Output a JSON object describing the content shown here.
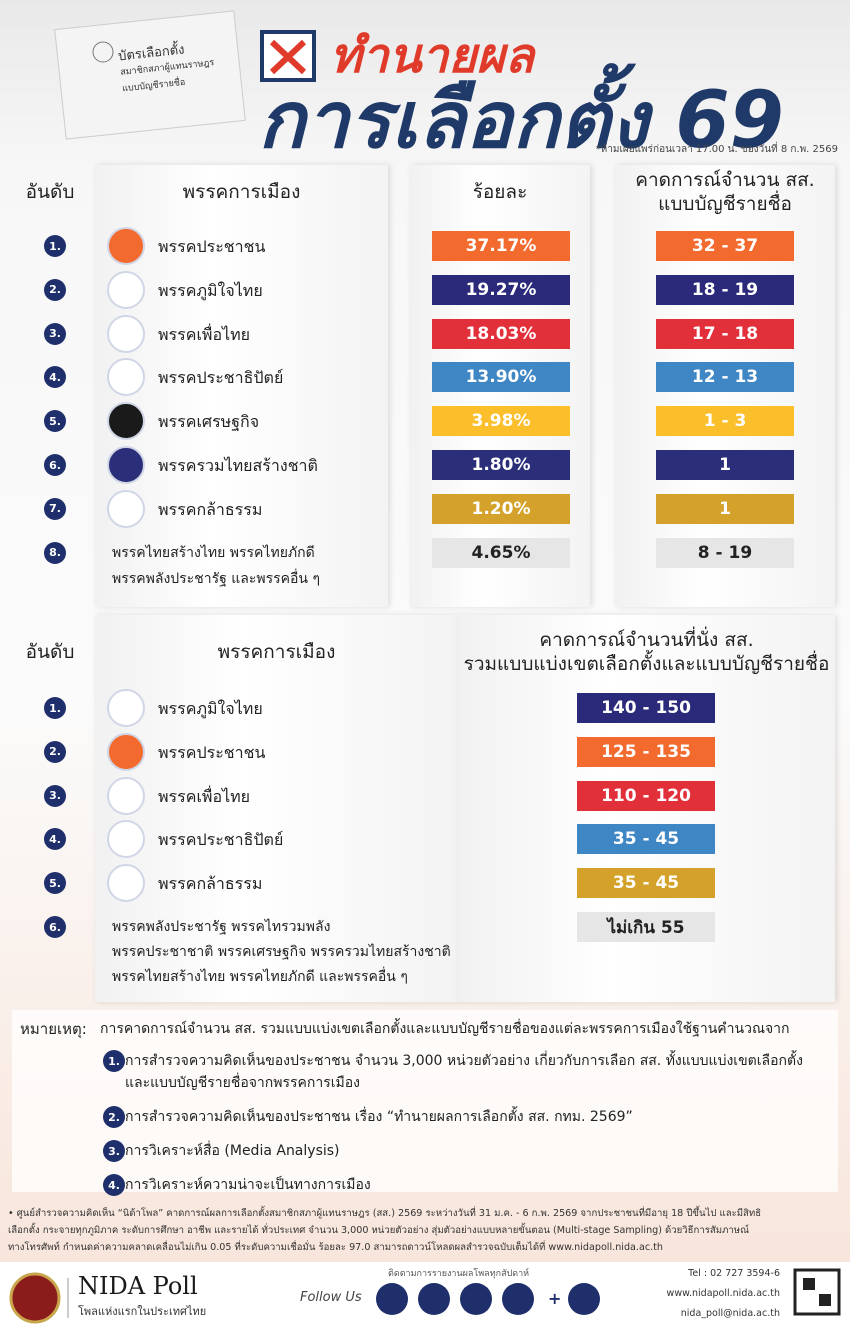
{
  "header": {
    "ballot": [
      "บัตรเลือกตั้ง",
      "สมาชิกสภาผู้แทนราษฎร",
      "แบบบัญชีรายชื่อ"
    ],
    "title_line1": "ทำนายผล",
    "title_line2": "การเลือกตั้ง 69",
    "note": "*ห้ามเผยแพร่ก่อนเวลา 17.00 น. ของวันที่ 8 ก.พ. 2569"
  },
  "table1": {
    "headers": [
      "อันดับ",
      "พรรคการเมือง",
      "ร้อยละ",
      [
        "คาดการณ์จำนวน สส.",
        "แบบบัญชีรายชื่อ"
      ]
    ],
    "rows": [
      {
        "rank": "1.",
        "party": [
          "พรรคประชาชน"
        ],
        "percent": "37.17%",
        "seats": "32 - 37",
        "color": "#f26a2e"
      },
      {
        "rank": "2.",
        "party": [
          "พรรคภูมิใจไทย"
        ],
        "percent": "19.27%",
        "seats": "18 - 19",
        "color": "#2b2a7a"
      },
      {
        "rank": "3.",
        "party": [
          "พรรคเพื่อไทย"
        ],
        "percent": "18.03%",
        "seats": "17 - 18",
        "color": "#e2303a"
      },
      {
        "rank": "4.",
        "party": [
          "พรรคประชาธิปัตย์"
        ],
        "percent": "13.90%",
        "seats": "12 - 13",
        "color": "#3f86c4"
      },
      {
        "rank": "5.",
        "party": [
          "พรรคเศรษฐกิจ"
        ],
        "percent": "3.98%",
        "seats": "1 - 3",
        "color": "#fbbf2c"
      },
      {
        "rank": "6.",
        "party": [
          "พรรครวมไทยสร้างชาติ"
        ],
        "percent": "1.80%",
        "seats": "1",
        "color": "#2b2f7a"
      },
      {
        "rank": "7.",
        "party": [
          "พรรคกล้าธรรม"
        ],
        "percent": "1.20%",
        "seats": "1",
        "color": "#d4a22a"
      },
      {
        "rank": "8.",
        "party": [
          "พรรคไทยสร้างไทย พรรคไทยภักดี",
          "พรรคพลังประชารัฐ และพรรคอื่น ๆ"
        ],
        "percent": "4.65%",
        "seats": "8 - 19",
        "color": "#e6e6e6"
      }
    ]
  },
  "table2": {
    "headers": [
      "อันดับ",
      "พรรคการเมือง",
      [
        "คาดการณ์จำนวนที่นั่ง สส.",
        "รวมแบบแบ่งเขตเลือกตั้งและแบบบัญชีรายชื่อ"
      ]
    ],
    "rows": [
      {
        "rank": "1.",
        "party": [
          "พรรคภูมิใจไทย"
        ],
        "seats": "140 - 150",
        "color": "#2b2a7a"
      },
      {
        "rank": "2.",
        "party": [
          "พรรคประชาชน"
        ],
        "seats": "125 - 135",
        "color": "#f26a2e"
      },
      {
        "rank": "3.",
        "party": [
          "พรรคเพื่อไทย"
        ],
        "seats": "110 - 120",
        "color": "#e2303a"
      },
      {
        "rank": "4.",
        "party": [
          "พรรคประชาธิปัตย์"
        ],
        "seats": "35 - 45",
        "color": "#3f86c4"
      },
      {
        "rank": "5.",
        "party": [
          "พรรคกล้าธรรม"
        ],
        "seats": "35 - 45",
        "color": "#d4a22a"
      },
      {
        "rank": "6.",
        "party": [
          "พรรคพลังประชารัฐ พรรคไทรวมพลัง",
          "พรรคประชาชาติ พรรคเศรษฐกิจ พรรครวมไทยสร้างชาติ",
          "พรรคไทยสร้างไทย พรรคไทยภักดี และพรรคอื่น ๆ"
        ],
        "seats": "ไม่เกิน 55",
        "color": "#e6e6e6"
      }
    ]
  },
  "notes": {
    "label": "หมายเหตุ:",
    "intro": "การคาดการณ์จำนวน สส. รวมแบบแบ่งเขตเลือกตั้งและแบบบัญชีรายชื่อของแต่ละพรรคการเมืองใช้ฐานคำนวณจาก",
    "items": [
      {
        "number": "1.",
        "lines": [
          "การสำรวจความคิดเห็นของประชาชน จำนวน 3,000 หน่วยตัวอย่าง เกี่ยวกับการเลือก สส. ทั้งแบบแบ่งเขตเลือกตั้ง",
          "และแบบบัญชีรายชื่อจากพรรคการเมือง"
        ]
      },
      {
        "number": "2.",
        "lines": [
          "การสำรวจความคิดเห็นของประชาชน เรื่อง “ทำนายผลการเลือกตั้ง สส. กทม. 2569”"
        ]
      },
      {
        "number": "3.",
        "lines": [
          "การวิเคราะห์สื่อ (Media Analysis)"
        ]
      },
      {
        "number": "4.",
        "lines": [
          "การวิเคราะห์ความน่าจะเป็นทางการเมือง"
        ]
      }
    ]
  },
  "footer": {
    "methodology": [
      "• ศูนย์สำรวจความคิดเห็น “นิด้าโพล” คาดการณ์ผลการเลือกตั้งสมาชิกสภาผู้แทนราษฎร (สส.) 2569 ระหว่างวันที่ 31 ม.ค. - 6 ก.พ. 2569 จากประชาชนที่มีอายุ 18 ปีขึ้นไป และมีสิทธิ",
      "เลือกตั้ง กระจายทุกภูมิภาค ระดับการศึกษา อาชีพ และรายได้ ทั่วประเทศ จำนวน 3,000 หน่วยตัวอย่าง สุ่มตัวอย่างแบบหลายขั้นตอน (Multi-stage Sampling) ด้วยวิธีการสัมภาษณ์",
      "ทางโทรศัพท์ กำหนดค่าความคลาดเคลื่อนไม่เกิน 0.05 ที่ระดับความเชื่อมั่น ร้อยละ 97.0 สามารถดาวน์โหลดผลสำรวจฉบับเต็มได้ที่ www.nidapoll.nida.ac.th"
    ],
    "brand": "NIDA Poll",
    "tagline": "โพลแห่งแรกในประเทศไทย",
    "follow_note": "ติดตามการรายงานผลโพลทุกสัปดาห์",
    "follow": "Follow Us",
    "plus": "+",
    "contacts": [
      "Tel : 02 727 3594-6",
      "www.nidapoll.nida.ac.th",
      "nida_poll@nida.ac.th"
    ]
  }
}
